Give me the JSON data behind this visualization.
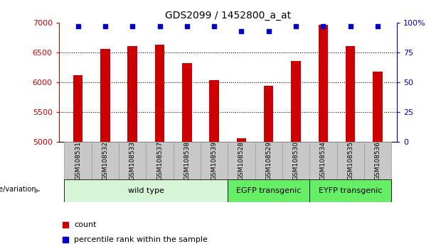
{
  "title": "GDS2099 / 1452800_a_at",
  "samples": [
    "GSM108531",
    "GSM108532",
    "GSM108533",
    "GSM108537",
    "GSM108538",
    "GSM108539",
    "GSM108528",
    "GSM108529",
    "GSM108530",
    "GSM108534",
    "GSM108535",
    "GSM108536"
  ],
  "counts": [
    6120,
    6560,
    6610,
    6630,
    6320,
    6040,
    5060,
    5940,
    6360,
    6960,
    6600,
    6180
  ],
  "percentiles": [
    97,
    97,
    97,
    97,
    97,
    97,
    93,
    93,
    97,
    97,
    97,
    97
  ],
  "groups": [
    {
      "label": "wild type",
      "start": 0,
      "end": 6,
      "color": "#d6f5d6"
    },
    {
      "label": "EGFP transgenic",
      "start": 6,
      "end": 9,
      "color": "#66ee66"
    },
    {
      "label": "EYFP transgenic",
      "start": 9,
      "end": 12,
      "color": "#66ee66"
    }
  ],
  "bar_color": "#cc0000",
  "dot_color": "#0000cc",
  "ylim_left": [
    5000,
    7000
  ],
  "ylim_right": [
    0,
    100
  ],
  "yticks_left": [
    5000,
    5500,
    6000,
    6500,
    7000
  ],
  "yticks_right": [
    0,
    25,
    50,
    75,
    100
  ],
  "grid_values": [
    5500,
    6000,
    6500
  ],
  "bar_width": 0.35,
  "background_color": "#ffffff",
  "legend_count_color": "#cc0000",
  "legend_dot_color": "#0000cc",
  "genotype_label": "genotype/variation",
  "legend_count_text": "count",
  "legend_percentile_text": "percentile rank within the sample",
  "tick_box_color": "#c8c8c8",
  "tick_box_edge_color": "#999999"
}
